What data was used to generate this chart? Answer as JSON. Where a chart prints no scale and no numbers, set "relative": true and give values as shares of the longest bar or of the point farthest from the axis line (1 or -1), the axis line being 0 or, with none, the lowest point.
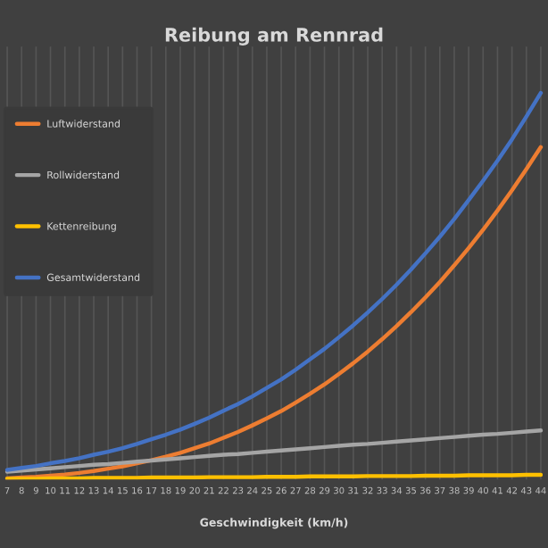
{
  "chart_data": {
    "type": "line",
    "title": "Reibung am Rennrad",
    "xlabel": "Geschwindigkeit (km/h)",
    "relative": true,
    "categories": [
      "7",
      "8",
      "9",
      "10",
      "11",
      "12",
      "13",
      "14",
      "15",
      "16",
      "17",
      "18",
      "19",
      "20",
      "21",
      "22",
      "23",
      "24",
      "25",
      "26",
      "27",
      "28",
      "29",
      "30",
      "31",
      "32",
      "33",
      "34",
      "35",
      "36",
      "37",
      "38",
      "39",
      "40",
      "41",
      "42",
      "43",
      "44"
    ],
    "series": [
      {
        "name": "Luftwiderstand",
        "color": "#ed7d31",
        "values": [
          0.003,
          0.005,
          0.007,
          0.01,
          0.013,
          0.017,
          0.022,
          0.028,
          0.034,
          0.042,
          0.05,
          0.059,
          0.069,
          0.081,
          0.093,
          0.108,
          0.123,
          0.14,
          0.158,
          0.177,
          0.199,
          0.222,
          0.246,
          0.273,
          0.301,
          0.331,
          0.363,
          0.397,
          0.433,
          0.471,
          0.511,
          0.554,
          0.599,
          0.646,
          0.696,
          0.748,
          0.803,
          0.86
        ]
      },
      {
        "name": "Rollwiderstand",
        "color": "#a5a5a5",
        "values": [
          0.02,
          0.023,
          0.026,
          0.029,
          0.032,
          0.035,
          0.038,
          0.04,
          0.043,
          0.046,
          0.049,
          0.052,
          0.055,
          0.058,
          0.061,
          0.064,
          0.066,
          0.069,
          0.072,
          0.075,
          0.078,
          0.081,
          0.084,
          0.087,
          0.09,
          0.092,
          0.095,
          0.098,
          0.101,
          0.104,
          0.107,
          0.11,
          0.113,
          0.116,
          0.118,
          0.121,
          0.124,
          0.127
        ]
      },
      {
        "name": "Kettenreibung",
        "color": "#ffc000",
        "values": [
          0.002,
          0.002,
          0.002,
          0.003,
          0.003,
          0.003,
          0.004,
          0.004,
          0.004,
          0.004,
          0.005,
          0.005,
          0.005,
          0.005,
          0.006,
          0.006,
          0.006,
          0.006,
          0.007,
          0.007,
          0.007,
          0.008,
          0.008,
          0.008,
          0.008,
          0.009,
          0.009,
          0.009,
          0.009,
          0.01,
          0.01,
          0.01,
          0.011,
          0.011,
          0.011,
          0.011,
          0.012,
          0.012
        ]
      },
      {
        "name": "Gesamtwiderstand",
        "color": "#4472c4",
        "values": [
          0.025,
          0.03,
          0.035,
          0.042,
          0.048,
          0.055,
          0.064,
          0.072,
          0.081,
          0.092,
          0.104,
          0.116,
          0.129,
          0.144,
          0.16,
          0.178,
          0.195,
          0.215,
          0.237,
          0.259,
          0.284,
          0.311,
          0.338,
          0.368,
          0.399,
          0.432,
          0.467,
          0.504,
          0.543,
          0.585,
          0.628,
          0.674,
          0.723,
          0.773,
          0.825,
          0.88,
          0.939,
          1.0
        ]
      }
    ],
    "grid": "x",
    "legend": "left",
    "marker": "none",
    "line_style": "solid"
  }
}
